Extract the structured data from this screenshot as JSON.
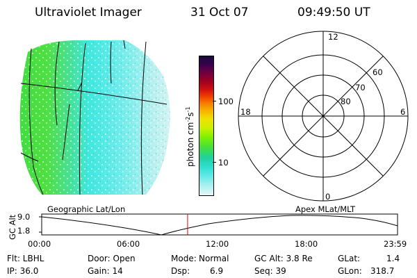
{
  "header": {
    "title": "Ultraviolet Imager",
    "date": "31 Oct 07",
    "time": "09:49:50 UT"
  },
  "colorbar": {
    "label": "photon cm-2s-1",
    "ticks": [
      "100",
      "10"
    ],
    "colors": [
      "#1a0a3a",
      "#3a0050",
      "#700040",
      "#a00020",
      "#d01010",
      "#f04000",
      "#f88000",
      "#f8b000",
      "#f0e000",
      "#c8f000",
      "#80f000",
      "#40e040",
      "#20d0a0",
      "#30e0d0",
      "#60e8e8",
      "#a0f0f0",
      "#d0f4f4",
      "#f0f8f8"
    ]
  },
  "polar_plot": {
    "clock_labels": {
      "top": "12",
      "bottom": "0",
      "left": "18",
      "right": "6"
    },
    "lat_labels": [
      "60",
      "70",
      "80"
    ]
  },
  "timeline": {
    "left_label": "Geographic Lat/Lon",
    "right_label": "Apex MLat/MLT",
    "y_title": "GC Alt",
    "y_ticks": [
      "9.0",
      "1.8"
    ],
    "x_ticks": [
      "00:00",
      "06:00",
      "12:00",
      "18:00",
      "23:59"
    ],
    "current_time_fraction": 0.41
  },
  "footer": {
    "col1": {
      "r1": "Flt: LBHL",
      "r2": "IP: 36.0"
    },
    "col2": {
      "r1": "Door: Open",
      "r2": "Gain: 14"
    },
    "col3": {
      "r1k": "Mode:",
      "r1v": "Normal",
      "r2k": "Dsp:",
      "r2v": "6.9"
    },
    "col4": {
      "r1": "GC Alt: 3.8 Re",
      "r2": "Seq: 39"
    },
    "col5": {
      "r1k": "GLat:",
      "r1v": "1.4",
      "r2k": "GLon:",
      "r2v": "318.7"
    }
  },
  "accent_colors": {
    "marker": "#e00000",
    "aurora_green": "#40e040",
    "aurora_cyan": "#40e8e0"
  }
}
